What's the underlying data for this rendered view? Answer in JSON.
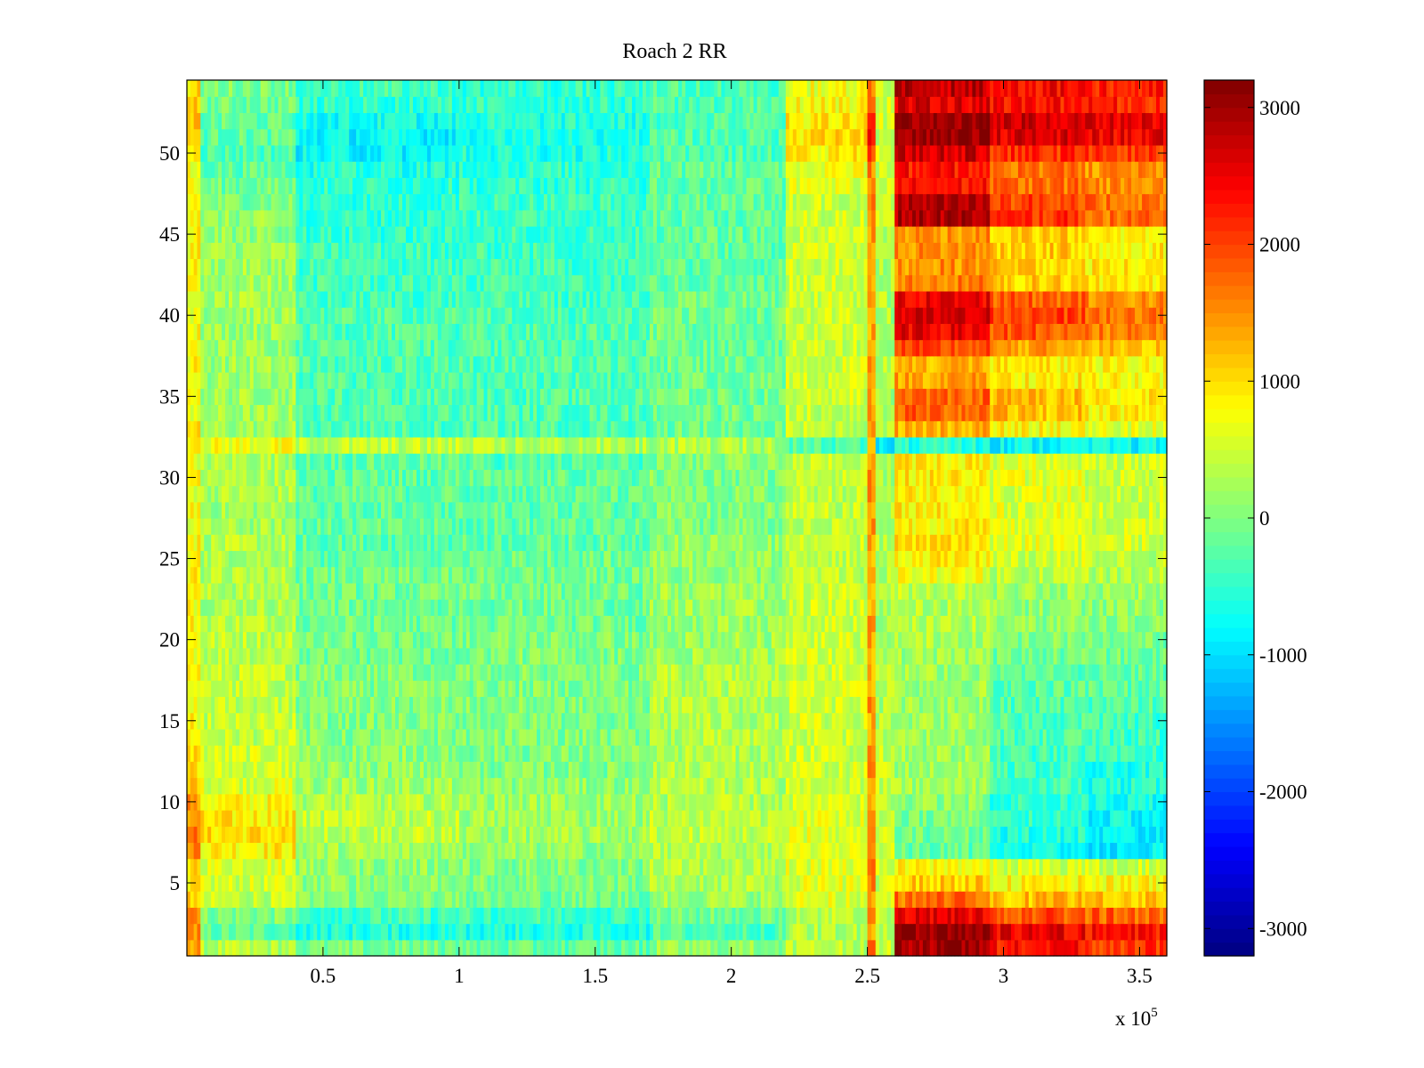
{
  "chart_data": {
    "type": "heatmap",
    "title": "Roach 2 RR",
    "xlabel": "",
    "ylabel": "",
    "x_exponent_label": {
      "prefix": "x 10",
      "exponent": "5"
    },
    "xlim": [
      0,
      3.6
    ],
    "ylim": [
      0.5,
      54.5
    ],
    "x_ticks": [
      {
        "value": 0.5,
        "label": "0.5"
      },
      {
        "value": 1,
        "label": "1"
      },
      {
        "value": 1.5,
        "label": "1.5"
      },
      {
        "value": 2,
        "label": "2"
      },
      {
        "value": 2.5,
        "label": "2.5"
      },
      {
        "value": 3,
        "label": "3"
      },
      {
        "value": 3.5,
        "label": "3.5"
      }
    ],
    "y_ticks": [
      {
        "value": 5,
        "label": "5"
      },
      {
        "value": 10,
        "label": "10"
      },
      {
        "value": 15,
        "label": "15"
      },
      {
        "value": 20,
        "label": "20"
      },
      {
        "value": 25,
        "label": "25"
      },
      {
        "value": 30,
        "label": "30"
      },
      {
        "value": 35,
        "label": "35"
      },
      {
        "value": 40,
        "label": "40"
      },
      {
        "value": 45,
        "label": "45"
      },
      {
        "value": 50,
        "label": "50"
      }
    ],
    "rows": 54,
    "colormap": "jet",
    "colorbar": {
      "clim": [
        -3200,
        3200
      ],
      "ticks": [
        {
          "value": 3000,
          "label": "3000"
        },
        {
          "value": 2000,
          "label": "2000"
        },
        {
          "value": 1000,
          "label": "1000"
        },
        {
          "value": 0,
          "label": "0"
        },
        {
          "value": -1000,
          "label": "-1000"
        },
        {
          "value": -2000,
          "label": "-2000"
        },
        {
          "value": -3000,
          "label": "-3000"
        }
      ]
    },
    "x_segments": [
      {
        "x0": 0,
        "x1": 0.05,
        "row_values": [
          1300,
          1500,
          1500,
          1100,
          900,
          1100,
          1500,
          1700,
          1500,
          1400,
          1100,
          1000,
          1100,
          900,
          800,
          800,
          800,
          800,
          800,
          800,
          800,
          800,
          800,
          800,
          800,
          800,
          700,
          800,
          700,
          700,
          700,
          900,
          900,
          700,
          800,
          800,
          800,
          700,
          800,
          800,
          800,
          800,
          800,
          800,
          800,
          800,
          800,
          800,
          800,
          900,
          1100,
          1100,
          1100,
          1000
        ]
      },
      {
        "x0": 0.05,
        "x1": 0.4,
        "row_values": [
          300,
          -200,
          0,
          400,
          500,
          600,
          900,
          1000,
          900,
          800,
          600,
          500,
          500,
          400,
          400,
          400,
          400,
          400,
          400,
          400,
          400,
          300,
          300,
          300,
          300,
          300,
          200,
          200,
          300,
          300,
          300,
          700,
          200,
          200,
          200,
          200,
          200,
          200,
          200,
          200,
          200,
          200,
          200,
          200,
          100,
          100,
          0,
          -100,
          -200,
          -300,
          -200,
          -200,
          -100,
          0
        ]
      },
      {
        "x0": 0.4,
        "x1": 1.0,
        "row_values": [
          -100,
          -600,
          -400,
          0,
          100,
          100,
          200,
          400,
          400,
          300,
          200,
          100,
          100,
          0,
          0,
          0,
          0,
          0,
          -100,
          -100,
          -100,
          -100,
          -100,
          -100,
          -200,
          -200,
          -200,
          -200,
          -200,
          -200,
          -200,
          400,
          -300,
          -300,
          -300,
          -300,
          -300,
          -300,
          -300,
          -300,
          -400,
          -400,
          -400,
          -400,
          -500,
          -500,
          -500,
          -500,
          -600,
          -800,
          -800,
          -700,
          -500,
          -400
        ]
      },
      {
        "x0": 1.0,
        "x1": 1.7,
        "row_values": [
          -200,
          -600,
          -400,
          -100,
          0,
          0,
          100,
          200,
          200,
          200,
          100,
          0,
          0,
          0,
          0,
          0,
          0,
          0,
          0,
          0,
          -100,
          -100,
          -100,
          -100,
          -100,
          -200,
          -200,
          -200,
          -200,
          -200,
          -300,
          300,
          -300,
          -300,
          -300,
          -300,
          -300,
          -300,
          -300,
          -300,
          -400,
          -400,
          -400,
          -400,
          -400,
          -400,
          -400,
          -500,
          -500,
          -600,
          -600,
          -600,
          -500,
          -500
        ]
      },
      {
        "x0": 1.7,
        "x1": 2.2,
        "row_values": [
          100,
          -300,
          -100,
          200,
          300,
          300,
          300,
          400,
          400,
          300,
          300,
          300,
          300,
          300,
          300,
          300,
          300,
          300,
          200,
          200,
          200,
          200,
          200,
          100,
          100,
          100,
          0,
          0,
          0,
          0,
          0,
          300,
          -100,
          -100,
          -100,
          -100,
          -100,
          -100,
          -100,
          -100,
          -100,
          -200,
          -200,
          -200,
          -200,
          -200,
          -200,
          -200,
          -200,
          -300,
          -300,
          -300,
          -300,
          -300
        ]
      },
      {
        "x0": 2.2,
        "x1": 2.5,
        "row_values": [
          400,
          300,
          400,
          600,
          600,
          600,
          600,
          600,
          600,
          500,
          500,
          500,
          500,
          500,
          500,
          500,
          500,
          500,
          500,
          500,
          500,
          500,
          500,
          400,
          400,
          400,
          400,
          400,
          400,
          400,
          400,
          -300,
          400,
          400,
          500,
          500,
          500,
          500,
          500,
          500,
          500,
          500,
          500,
          500,
          500,
          500,
          500,
          600,
          700,
          900,
          1000,
          900,
          800,
          700
        ]
      },
      {
        "x0": 2.5,
        "x1": 2.53,
        "row_values": [
          1600,
          1500,
          1500,
          1500,
          1500,
          1500,
          1500,
          1500,
          1500,
          1400,
          1400,
          1400,
          1400,
          1400,
          1400,
          1400,
          1400,
          1400,
          1400,
          1400,
          1400,
          1400,
          1400,
          1400,
          1400,
          1400,
          1400,
          1400,
          1400,
          1400,
          1400,
          1200,
          1400,
          1400,
          1400,
          1400,
          1400,
          1400,
          1400,
          1400,
          1400,
          1400,
          1400,
          1400,
          1400,
          1500,
          1500,
          1500,
          1600,
          2000,
          2200,
          2000,
          1600,
          1600
        ]
      },
      {
        "x0": 2.53,
        "x1": 2.6,
        "row_values": [
          400,
          300,
          400,
          600,
          500,
          500,
          500,
          500,
          500,
          400,
          400,
          400,
          400,
          300,
          300,
          300,
          300,
          300,
          300,
          300,
          300,
          300,
          300,
          300,
          300,
          300,
          300,
          300,
          300,
          300,
          300,
          -800,
          300,
          300,
          300,
          300,
          300,
          300,
          300,
          300,
          300,
          300,
          300,
          300,
          400,
          400,
          400,
          400,
          400,
          500,
          500,
          500,
          500,
          500
        ]
      },
      {
        "x0": 2.6,
        "x1": 2.95,
        "row_values": [
          3000,
          3100,
          2500,
          1700,
          1100,
          800,
          -200,
          -100,
          0,
          100,
          200,
          200,
          200,
          200,
          200,
          200,
          200,
          200,
          200,
          300,
          300,
          300,
          400,
          700,
          900,
          1000,
          900,
          900,
          900,
          900,
          900,
          -600,
          1300,
          1800,
          1800,
          1400,
          1300,
          1900,
          2500,
          2600,
          2500,
          1600,
          1500,
          1500,
          1500,
          2900,
          2800,
          2300,
          2300,
          2700,
          3100,
          3100,
          2600,
          2800
        ]
      },
      {
        "x0": 2.95,
        "x1": 3.3,
        "row_values": [
          2300,
          2500,
          1900,
          1200,
          800,
          500,
          -700,
          -600,
          -500,
          -500,
          -400,
          -400,
          -400,
          -300,
          -300,
          -300,
          -200,
          -200,
          -100,
          0,
          100,
          100,
          200,
          400,
          500,
          600,
          600,
          600,
          600,
          600,
          600,
          -800,
          800,
          1200,
          1200,
          900,
          900,
          1400,
          1900,
          2000,
          1800,
          1100,
          1100,
          1100,
          1100,
          2100,
          2000,
          1700,
          1700,
          2100,
          2600,
          2700,
          2300,
          2400
        ]
      },
      {
        "x0": 3.3,
        "x1": 3.6,
        "row_values": [
          2100,
          2300,
          1800,
          1200,
          800,
          500,
          -900,
          -900,
          -800,
          -700,
          -600,
          -600,
          -500,
          -400,
          -400,
          -300,
          -200,
          -200,
          -100,
          0,
          100,
          100,
          200,
          300,
          400,
          500,
          500,
          500,
          500,
          500,
          500,
          -800,
          600,
          900,
          900,
          800,
          800,
          1200,
          1600,
          1700,
          1500,
          900,
          900,
          900,
          900,
          1700,
          1700,
          1500,
          1500,
          2000,
          2500,
          2600,
          2200,
          2200
        ]
      }
    ]
  }
}
